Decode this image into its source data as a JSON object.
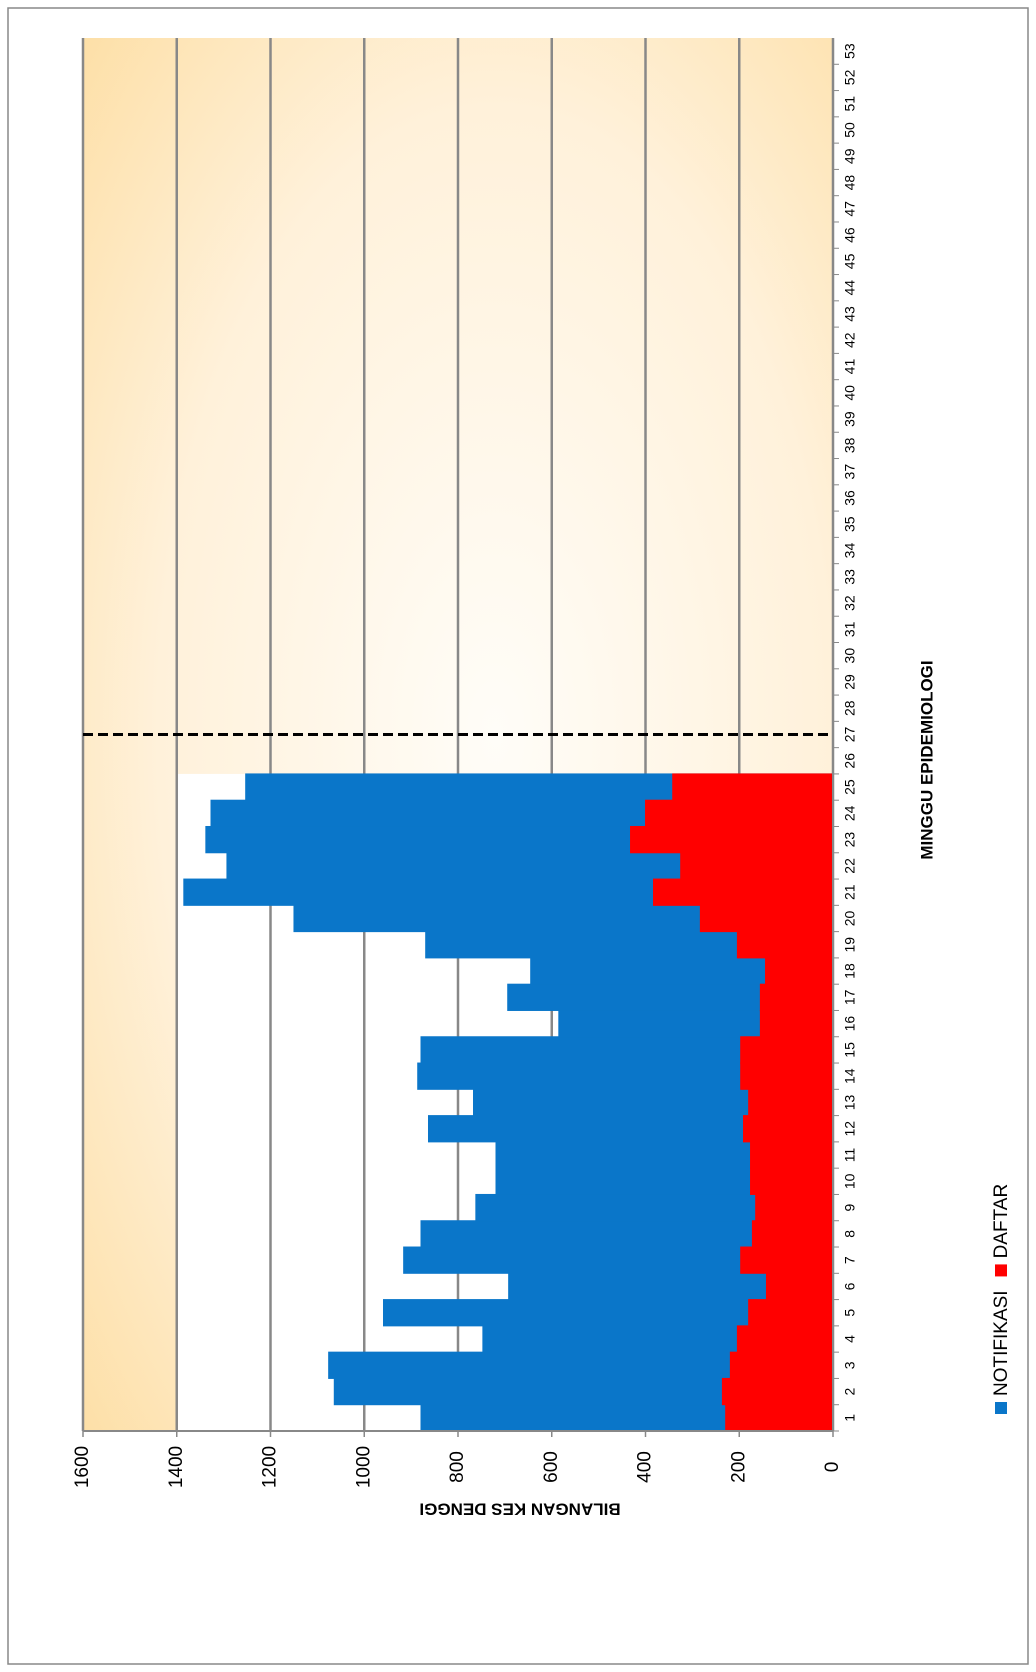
{
  "chart_data": {
    "type": "area",
    "xlabel": "MINGGU  EPIDEMIOLOGI",
    "ylabel": "BILANGAN  KES  DENGGI",
    "x": [
      1,
      2,
      3,
      4,
      5,
      6,
      7,
      8,
      9,
      10,
      11,
      12,
      13,
      14,
      15,
      16,
      17,
      18,
      19,
      20,
      21,
      22,
      23,
      24,
      25,
      26,
      27,
      28,
      29,
      30,
      31,
      32,
      33,
      34,
      35,
      36,
      37,
      38,
      39,
      40,
      41,
      42,
      43,
      44,
      45,
      46,
      47,
      48,
      49,
      50,
      51,
      52,
      53
    ],
    "series": [
      {
        "name": "NOTIFIKASI",
        "color": "#0a76c9",
        "values": [
          880,
          1065,
          1077,
          748,
          960,
          693,
          917,
          880,
          763,
          720,
          720,
          864,
          768,
          887,
          880,
          586,
          695,
          646,
          870,
          1151,
          1386,
          1294,
          1339,
          1328,
          1254,
          null,
          null,
          null,
          null,
          null,
          null,
          null,
          null,
          null,
          null,
          null,
          null,
          null,
          null,
          null,
          null,
          null,
          null,
          null,
          null,
          null,
          null,
          null,
          null,
          null,
          null,
          null,
          null
        ]
      },
      {
        "name": "DAFTAR",
        "color": "#ff0000",
        "values": [
          230,
          237,
          220,
          205,
          181,
          143,
          198,
          173,
          166,
          177,
          177,
          192,
          181,
          198,
          198,
          156,
          156,
          145,
          205,
          284,
          384,
          326,
          433,
          401,
          343,
          null,
          null,
          null,
          null,
          null,
          null,
          null,
          null,
          null,
          null,
          null,
          null,
          null,
          null,
          null,
          null,
          null,
          null,
          null,
          null,
          null,
          null,
          null,
          null,
          null,
          null,
          null,
          null
        ]
      }
    ],
    "reference_line": {
      "x": 27
    },
    "xlim": [
      0.5,
      53.5
    ],
    "xticks": [
      1,
      2,
      3,
      4,
      5,
      6,
      7,
      8,
      9,
      10,
      11,
      12,
      13,
      14,
      15,
      16,
      17,
      18,
      19,
      20,
      21,
      22,
      23,
      24,
      25,
      26,
      27,
      28,
      29,
      30,
      31,
      32,
      33,
      34,
      35,
      36,
      37,
      38,
      39,
      40,
      41,
      42,
      43,
      44,
      45,
      46,
      47,
      48,
      49,
      50,
      51,
      52,
      53
    ],
    "ylim": [
      0,
      1600
    ],
    "yticks": [
      0,
      200,
      400,
      600,
      800,
      1000,
      1200,
      1400,
      1600
    ],
    "grid": true
  }
}
